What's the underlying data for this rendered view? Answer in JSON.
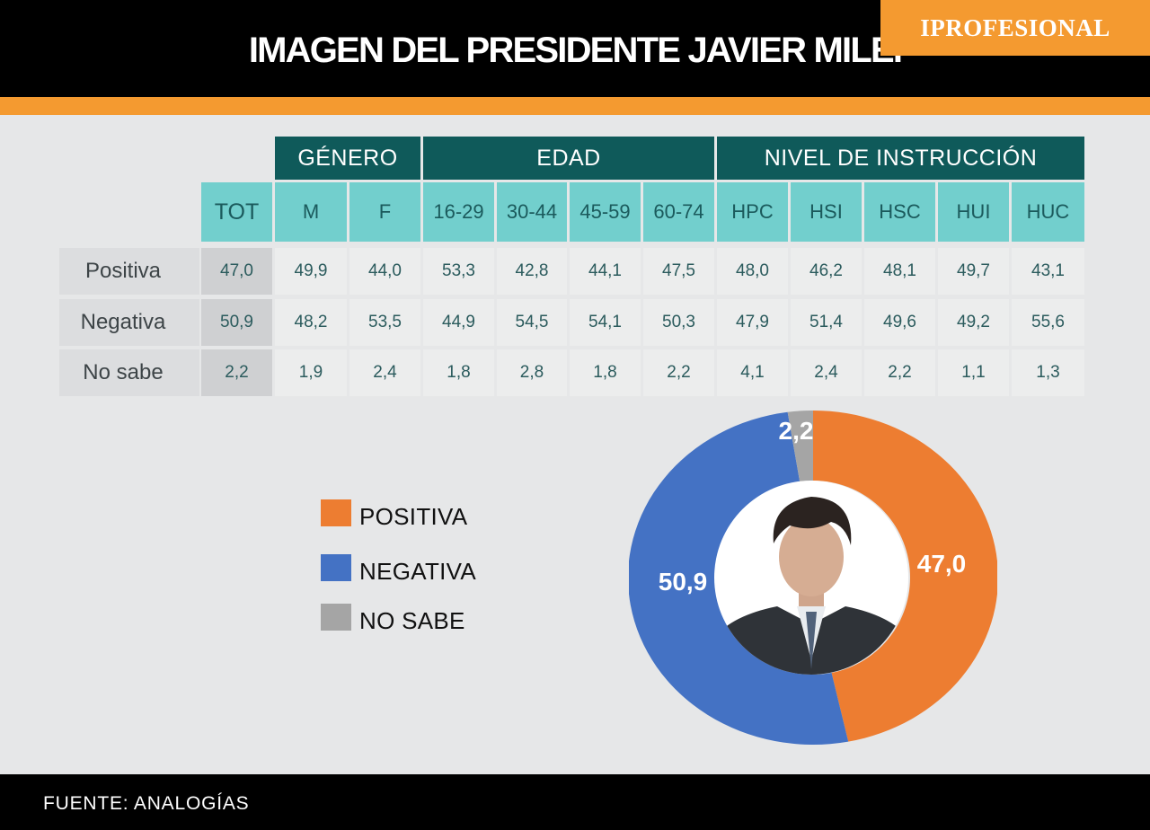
{
  "title": "IMAGEN DEL PRESIDENTE JAVIER MILEI",
  "table": {
    "groups": [
      "GÉNERO",
      "EDAD",
      "NIVEL DE INSTRUCCIÓN"
    ],
    "columns": [
      "TOT",
      "M",
      "F",
      "16-29",
      "30-44",
      "45-59",
      "60-74",
      "HPC",
      "HSI",
      "HSC",
      "HUI",
      "HUC"
    ],
    "rows": [
      {
        "label": "Positiva",
        "values": [
          "47,0",
          "49,9",
          "44,0",
          "53,3",
          "42,8",
          "44,1",
          "47,5",
          "48,0",
          "46,2",
          "48,1",
          "49,7",
          "43,1"
        ]
      },
      {
        "label": "Negativa",
        "values": [
          "50,9",
          "48,2",
          "53,5",
          "44,9",
          "54,5",
          "54,1",
          "50,3",
          "47,9",
          "51,4",
          "49,6",
          "49,2",
          "55,6"
        ]
      },
      {
        "label": "No sabe",
        "values": [
          "2,2",
          "1,9",
          "2,4",
          "1,8",
          "2,8",
          "1,8",
          "2,2",
          "4,1",
          "2,4",
          "2,2",
          "1,1",
          "1,3"
        ]
      }
    ]
  },
  "legend": [
    {
      "label": "POSITIVA",
      "color": "#ed7d31"
    },
    {
      "label": "NEGATIVA",
      "color": "#4472c4"
    },
    {
      "label": "NO SABE",
      "color": "#a5a5a5"
    }
  ],
  "chart_data": {
    "type": "pie",
    "categories": [
      "POSITIVA",
      "NEGATIVA",
      "NO SABE"
    ],
    "values": [
      47.0,
      50.9,
      2.2
    ],
    "labels": [
      "47,0",
      "50,9",
      "2,2"
    ],
    "colors": [
      "#ed7d31",
      "#4472c4",
      "#a5a5a5"
    ]
  },
  "footer": {
    "source": "FUENTE: ANALOGÍAS",
    "brand": "IPROFESIONAL"
  },
  "icons": {
    "photo": "president-portrait-icon"
  }
}
